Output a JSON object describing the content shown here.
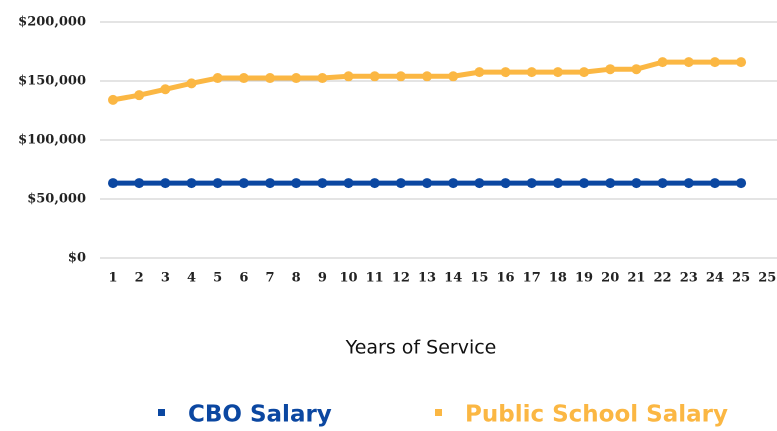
{
  "chart_data": {
    "type": "line",
    "x_label": "Years of Service",
    "categories": [
      "1",
      "2",
      "3",
      "4",
      "5",
      "6",
      "7",
      "8",
      "9",
      "10",
      "11",
      "12",
      "13",
      "14",
      "15",
      "16",
      "17",
      "18",
      "19",
      "20",
      "21",
      "22",
      "23",
      "24",
      "25",
      "25"
    ],
    "series": [
      {
        "name": "CBO Salary",
        "color": "#0b47a1",
        "values": [
          63500,
          63500,
          63500,
          63500,
          63500,
          63500,
          63500,
          63500,
          63500,
          63500,
          63500,
          63500,
          63500,
          63500,
          63500,
          63500,
          63500,
          63500,
          63500,
          63500,
          63500,
          63500,
          63500,
          63500,
          63500,
          null
        ]
      },
      {
        "name": "Public School Salary",
        "color": "#fbb743",
        "values": [
          134000,
          138000,
          143000,
          148000,
          152500,
          152500,
          152500,
          152500,
          152500,
          154000,
          154000,
          154000,
          154000,
          154000,
          157500,
          157500,
          157500,
          157500,
          157500,
          160000,
          160000,
          166000,
          166000,
          166000,
          166000,
          null
        ]
      }
    ],
    "ylim": [
      0,
      200000
    ],
    "yticks": [
      {
        "value": 0,
        "label": "$0"
      },
      {
        "value": 50000,
        "label": "$50,000"
      },
      {
        "value": 100000,
        "label": "$100,000"
      },
      {
        "value": 150000,
        "label": "$150,000"
      },
      {
        "value": 200000,
        "label": "$200,000"
      }
    ],
    "grid": true,
    "legend": "bottom"
  }
}
